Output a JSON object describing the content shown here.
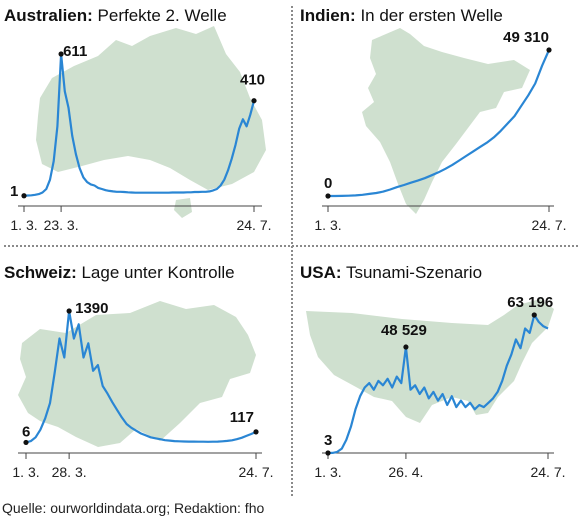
{
  "source": "Quelle: ourworldindata.org; Redaktion: fho",
  "colors": {
    "line": "#2a86d4",
    "map": "#cfe0cf",
    "axis": "#444444"
  },
  "chart_data": [
    {
      "type": "line",
      "title_bold": "Australien:",
      "title_rest": " Perfekte 2. Welle",
      "x_ticks": [
        "1. 3.",
        "23. 3.",
        "24. 7."
      ],
      "map_icon": "australia-map-icon",
      "series": [
        {
          "values": [
            1,
            2,
            3,
            5,
            8,
            15,
            30,
            70,
            150,
            300,
            611,
            450,
            380,
            260,
            180,
            120,
            80,
            60,
            50,
            45,
            35,
            30,
            25,
            22,
            20,
            18,
            18,
            17,
            16,
            15,
            14,
            14,
            14,
            14,
            14,
            14,
            14,
            14,
            14,
            14,
            15,
            15,
            15,
            15,
            16,
            16,
            17,
            17,
            18,
            18,
            20,
            24,
            30,
            45,
            70,
            110,
            160,
            220,
            290,
            330,
            300,
            350,
            410
          ]
        }
      ],
      "annotations": [
        {
          "label": "1",
          "value": 1
        },
        {
          "label": "611",
          "value": 611
        },
        {
          "label": "410",
          "value": 410
        }
      ]
    },
    {
      "type": "line",
      "title_bold": "Indien:",
      "title_rest": " In der ersten Welle",
      "x_ticks": [
        "1. 3.",
        "24. 7."
      ],
      "map_icon": "india-map-icon",
      "series": [
        {
          "values": [
            0,
            10,
            50,
            100,
            200,
            400,
            700,
            1000,
            1500,
            2200,
            3000,
            3700,
            4500,
            5200,
            6000,
            7000,
            8000,
            9200,
            10500,
            12000,
            13500,
            15000,
            16500,
            18000,
            19800,
            22000,
            24500,
            27000,
            30500,
            34000,
            38000,
            44000,
            49310
          ]
        }
      ],
      "annotations": [
        {
          "label": "0",
          "value": 0
        },
        {
          "label": "49 310",
          "value": 49310
        }
      ]
    },
    {
      "type": "line",
      "title_bold": "Schweiz:",
      "title_rest": " Lage unter Kontrolle",
      "x_ticks": [
        "1. 3.",
        "28. 3.",
        "24. 7."
      ],
      "map_icon": "switzerland-map-icon",
      "series": [
        {
          "values": [
            6,
            20,
            60,
            140,
            260,
            420,
            750,
            1100,
            900,
            1390,
            1100,
            1250,
            900,
            1050,
            760,
            820,
            600,
            520,
            430,
            350,
            270,
            200,
            160,
            130,
            100,
            80,
            60,
            50,
            40,
            30,
            25,
            20,
            18,
            16,
            15,
            15,
            14,
            14,
            13,
            14,
            15,
            18,
            22,
            28,
            40,
            55,
            75,
            95,
            117
          ]
        }
      ],
      "annotations": [
        {
          "label": "6",
          "value": 6
        },
        {
          "label": "1390",
          "value": 1390
        },
        {
          "label": "117",
          "value": 117
        }
      ]
    },
    {
      "type": "line",
      "title_bold": "USA:",
      "title_rest": " Tsunami-Szenario",
      "x_ticks": [
        "1. 3.",
        "26. 4.",
        "24. 7."
      ],
      "map_icon": "usa-map-icon",
      "series": [
        {
          "values": [
            3,
            50,
            500,
            2000,
            6000,
            12000,
            20000,
            26000,
            30000,
            32000,
            29000,
            33000,
            31000,
            34000,
            30000,
            35000,
            32000,
            48529,
            29000,
            31000,
            27000,
            30000,
            25000,
            28000,
            24000,
            27000,
            22000,
            26000,
            21000,
            24000,
            21000,
            23000,
            20000,
            22000,
            21000,
            23000,
            25000,
            28000,
            33000,
            40000,
            45000,
            52000,
            48000,
            57000,
            55000,
            63196,
            60000,
            58000,
            57000
          ]
        }
      ],
      "annotations": [
        {
          "label": "3",
          "value": 3
        },
        {
          "label": "48 529",
          "value": 48529
        },
        {
          "label": "63 196",
          "value": 63196
        }
      ]
    }
  ]
}
